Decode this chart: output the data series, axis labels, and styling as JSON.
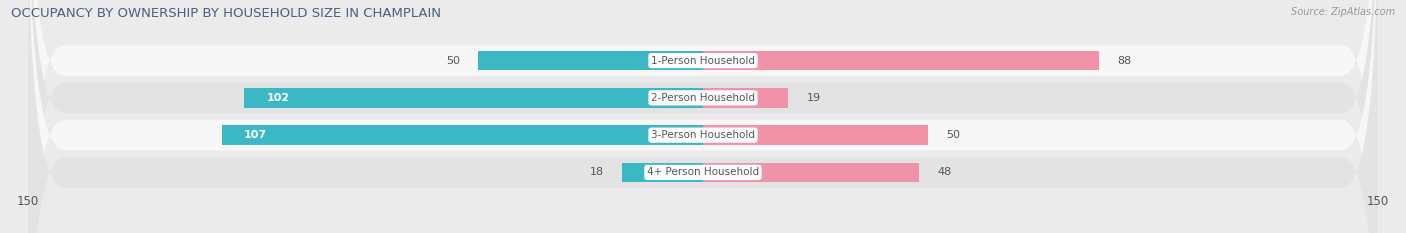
{
  "title": "OCCUPANCY BY OWNERSHIP BY HOUSEHOLD SIZE IN CHAMPLAIN",
  "source": "Source: ZipAtlas.com",
  "categories": [
    "1-Person Household",
    "2-Person Household",
    "3-Person Household",
    "4+ Person Household"
  ],
  "owner_values": [
    50,
    102,
    107,
    18
  ],
  "renter_values": [
    88,
    19,
    50,
    48
  ],
  "owner_color": "#3BB8C3",
  "renter_color": "#F093A8",
  "axis_max": 150,
  "bg_color": "#ebebeb",
  "row_bg_light": "#f7f7f7",
  "row_bg_dark": "#e3e3e3",
  "label_color_dark": "#555555",
  "label_color_white": "#ffffff",
  "title_color": "#4a6080",
  "title_fontsize": 9.5,
  "bar_label_fontsize": 8,
  "cat_label_fontsize": 7.5,
  "legend_fontsize": 8,
  "axis_label_fontsize": 8.5
}
